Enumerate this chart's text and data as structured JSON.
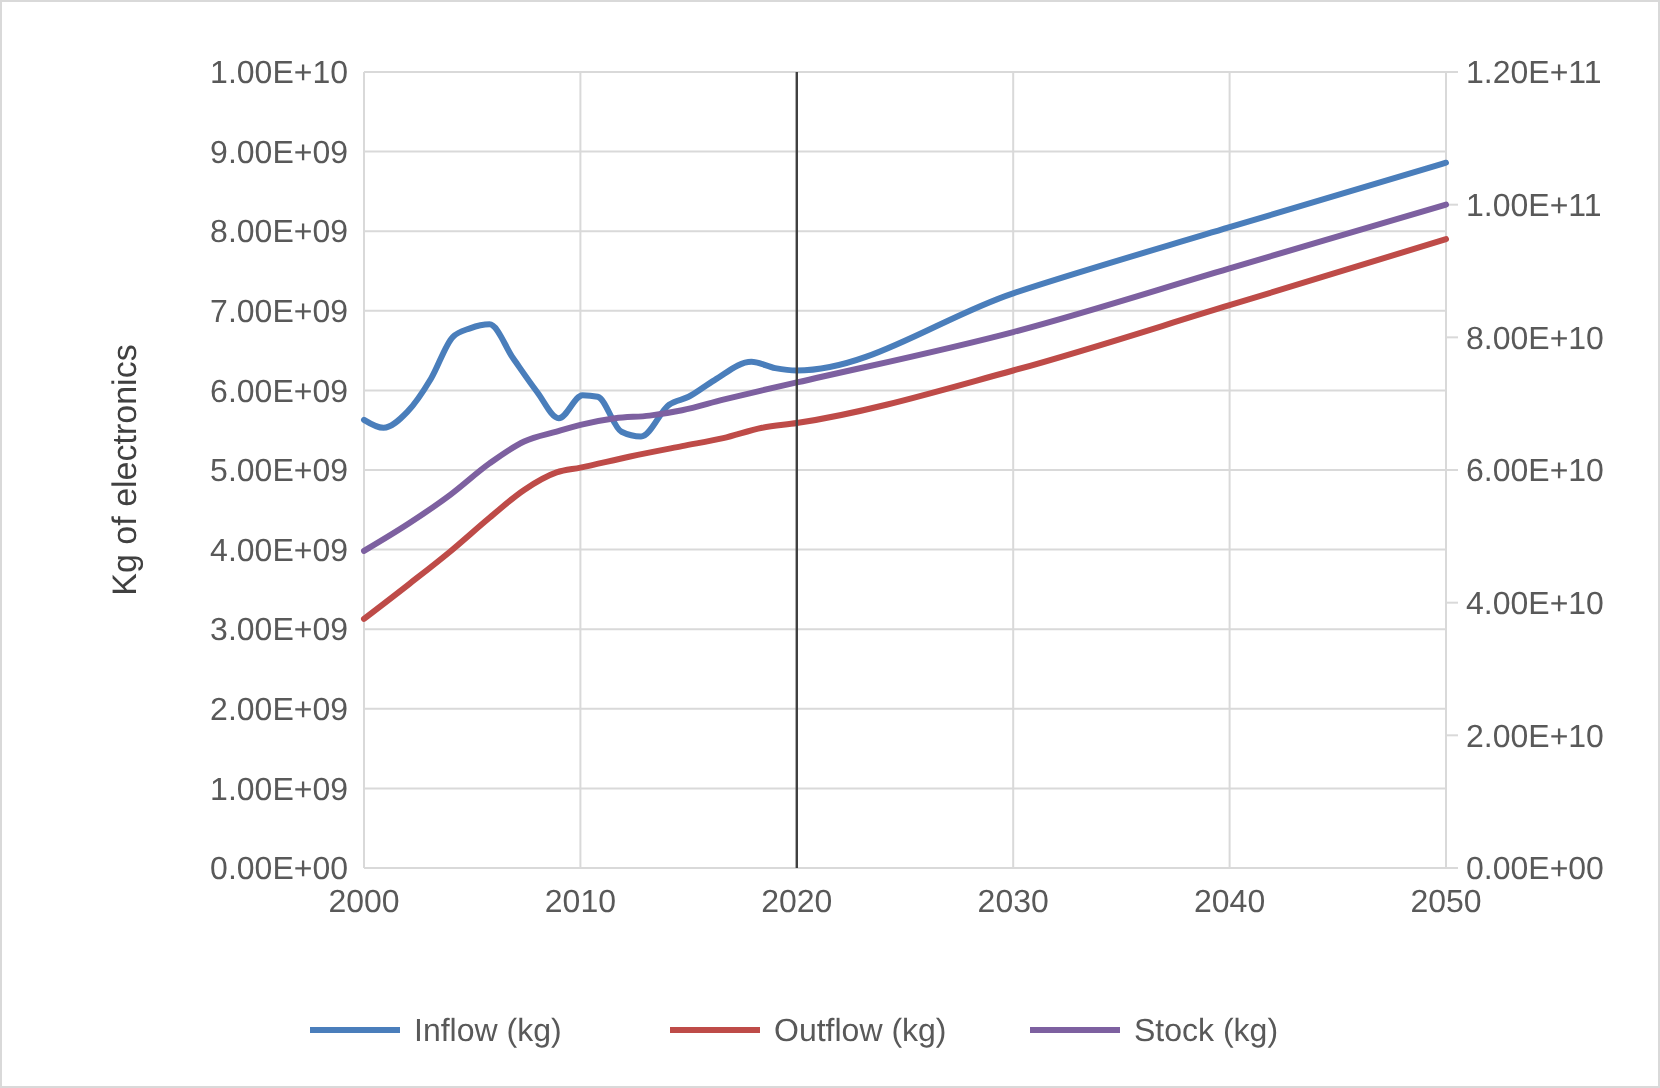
{
  "chart_data": {
    "type": "line",
    "ylabel": "Kg of electronics",
    "xlim": [
      2000,
      2050
    ],
    "xticks": [
      2000,
      2010,
      2020,
      2030,
      2040,
      2050
    ],
    "ylim": [
      0,
      10000000000
    ],
    "yticks": [
      {
        "value": 0,
        "label": "0.00E+00"
      },
      {
        "value": 1000000000,
        "label": "1.00E+09"
      },
      {
        "value": 2000000000,
        "label": "2.00E+09"
      },
      {
        "value": 3000000000,
        "label": "3.00E+09"
      },
      {
        "value": 4000000000,
        "label": "4.00E+09"
      },
      {
        "value": 5000000000,
        "label": "5.00E+09"
      },
      {
        "value": 6000000000,
        "label": "6.00E+09"
      },
      {
        "value": 7000000000,
        "label": "7.00E+09"
      },
      {
        "value": 8000000000,
        "label": "8.00E+09"
      },
      {
        "value": 9000000000,
        "label": "9.00E+09"
      },
      {
        "value": 10000000000,
        "label": "1.00E+10"
      }
    ],
    "y2lim": [
      0,
      120000000000
    ],
    "y2ticks": [
      {
        "value": 0,
        "label": "0.00E+00"
      },
      {
        "value": 20000000000,
        "label": "2.00E+10"
      },
      {
        "value": 40000000000,
        "label": "4.00E+10"
      },
      {
        "value": 60000000000,
        "label": "6.00E+10"
      },
      {
        "value": 80000000000,
        "label": "8.00E+10"
      },
      {
        "value": 100000000000,
        "label": "1.00E+11"
      },
      {
        "value": 120000000000,
        "label": "1.20E+11"
      }
    ],
    "grid": true,
    "legend": "bottom",
    "marker": "none",
    "line_style": "solid",
    "ref_lines": [
      {
        "axis": "x",
        "value": 2020,
        "color": "#404040"
      }
    ],
    "series": [
      {
        "name": "Inflow (kg)",
        "color": "#4a7ebb",
        "x": [
          2000,
          2000.9,
          2002,
          2003.1,
          2004.1,
          2004.9,
          2005.8,
          2006.9,
          2008,
          2009,
          2010.1,
          2010.8,
          2011.9,
          2012.8,
          2014.1,
          2015,
          2016.2,
          2017.9,
          2019,
          2020,
          2030,
          2040,
          2050
        ],
        "values": [
          5630000000,
          5530000000,
          5730000000,
          6150000000,
          6670000000,
          6780000000,
          6830000000,
          6400000000,
          5980000000,
          5650000000,
          5940000000,
          5920000000,
          5480000000,
          5420000000,
          5820000000,
          5920000000,
          6130000000,
          6360000000,
          6280000000,
          6250000000,
          7220000000,
          8050000000,
          8860000000
        ]
      },
      {
        "name": "Outflow (kg)",
        "color": "#be4b48",
        "x": [
          2000,
          2002.1,
          2004,
          2005.8,
          2007.4,
          2008.9,
          2010,
          2012.3,
          2014.7,
          2016.6,
          2018.4,
          2020,
          2030,
          2040,
          2050
        ],
        "values": [
          3130000000,
          3570000000,
          3980000000,
          4400000000,
          4750000000,
          4970000000,
          5030000000,
          5170000000,
          5300000000,
          5400000000,
          5530000000,
          5590000000,
          6250000000,
          7070000000,
          7900000000
        ]
      },
      {
        "name": "Stock (kg)",
        "color": "#7d60a0",
        "axis": "y2",
        "x": [
          2000,
          2002.1,
          2004,
          2005.8,
          2007.4,
          2008.9,
          2010,
          2011.6,
          2013.2,
          2014.7,
          2016.6,
          2018.4,
          2020,
          2030,
          2040,
          2050
        ],
        "values": [
          47800000000,
          52000000000,
          56300000000,
          61000000000,
          64300000000,
          65800000000,
          66800000000,
          67800000000,
          68200000000,
          69000000000,
          70600000000,
          72000000000,
          73200000000,
          80800000000,
          90400000000,
          100000000000
        ]
      }
    ]
  }
}
